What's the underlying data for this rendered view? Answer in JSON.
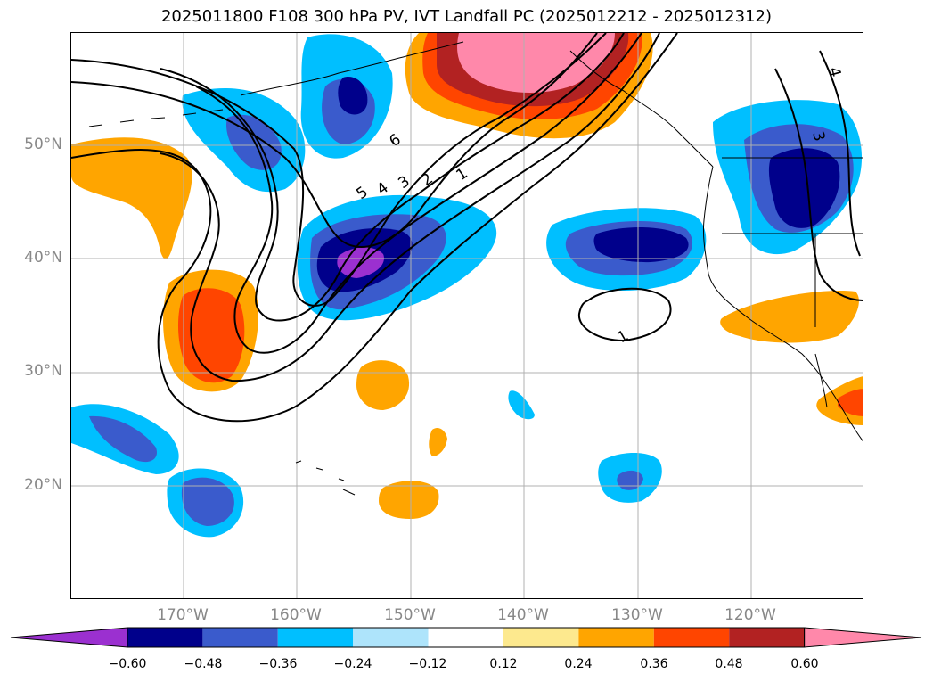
{
  "title": "2025011800 F108 300 hPa PV, IVT Landfall PC (2025012212 - 2025012312)",
  "lat_labels": [
    "50°N",
    "40°N",
    "30°N",
    "20°N"
  ],
  "lon_labels": [
    "170°W",
    "160°W",
    "150°W",
    "140°W",
    "130°W",
    "120°W"
  ],
  "contour_labels": [
    "6",
    "5",
    "4",
    "3",
    "2",
    "1",
    "1",
    "3",
    "4"
  ],
  "colorbar": {
    "ticks": [
      "−0.60",
      "−0.48",
      "−0.36",
      "−0.24",
      "−0.12",
      "0.12",
      "0.24",
      "0.36",
      "0.48",
      "0.60"
    ],
    "colors": [
      "#9b30d0",
      "#00008b",
      "#3a5bcc",
      "#00bfff",
      "#aee4fb",
      "#ffffff",
      "#fde98e",
      "#ffa500",
      "#ff4500",
      "#b22222",
      "#ff88aa"
    ]
  },
  "palette": {
    "gridline": "#b0b0b0",
    "axis_label": "#888888",
    "contour": "#000000"
  }
}
